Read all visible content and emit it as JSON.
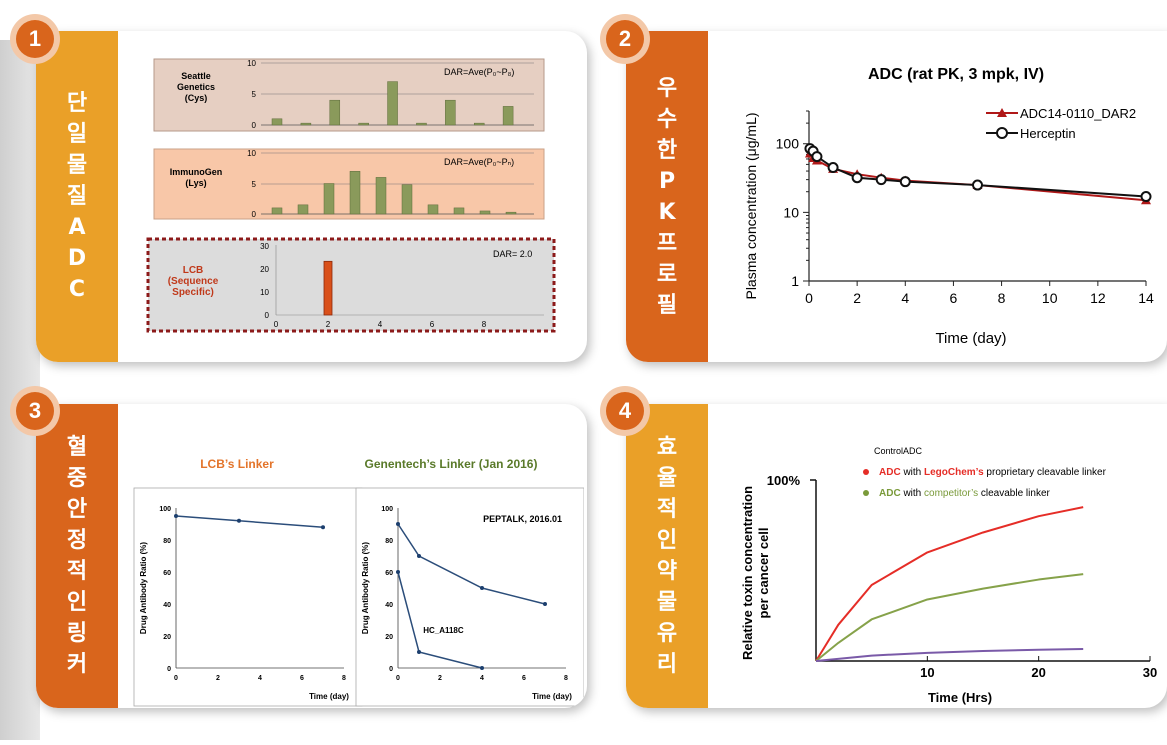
{
  "badges": [
    "1",
    "2",
    "3",
    "4"
  ],
  "panel1": {
    "side_label": "단일물질ADC",
    "charts": [
      {
        "label_lines": [
          "Seattle",
          "Genetics",
          "(Cys)"
        ],
        "dar": "DAR=Ave(P₀~P₈)",
        "ylim": [
          0,
          10
        ],
        "yticks": [
          "10",
          "5",
          "0"
        ],
        "values": [
          1,
          0.3,
          4,
          0.3,
          7,
          0.3,
          4,
          0.3,
          3
        ]
      },
      {
        "label_lines": [
          "ImmunoGen",
          "(Lys)"
        ],
        "dar": "DAR=Ave(P₀~Pₙ)",
        "ylim": [
          0,
          10
        ],
        "yticks": [
          "10",
          "5",
          "0"
        ],
        "values": [
          1,
          1.5,
          5,
          7,
          6,
          4.8,
          1.5,
          1,
          0.5,
          0.3
        ]
      },
      {
        "label_lines": [
          "LCB",
          "(Sequence",
          "Specific)"
        ],
        "dar": "DAR= 2.0",
        "ylim": [
          0,
          30
        ],
        "yticks": [
          "30",
          "20",
          "10",
          "0"
        ],
        "xticks": [
          "0",
          "2",
          "4",
          "6",
          "8"
        ],
        "values": [
          {
            "x": 2,
            "y": 23
          }
        ]
      }
    ]
  },
  "panel2": {
    "side_label": "우수한PK프로필",
    "chart_data": {
      "type": "line",
      "title": "ADC (rat PK, 3 mpk, IV)",
      "xlabel": "Time (day)",
      "ylabel": "Plasma concentration (μg/mL)",
      "yscale": "log",
      "ylim": [
        1,
        300
      ],
      "xlim": [
        0,
        14
      ],
      "xticks": [
        "0",
        "2",
        "4",
        "6",
        "8",
        "10",
        "12",
        "14"
      ],
      "yticks": [
        "1",
        "10",
        "100"
      ],
      "series": [
        {
          "name": "ADC14-0110_DAR2",
          "color": "#b01818",
          "marker": "triangle",
          "x": [
            0.04,
            0.17,
            0.33,
            1,
            2,
            3,
            4,
            7,
            14
          ],
          "y": [
            72,
            62,
            57,
            43,
            36,
            32,
            29,
            25,
            15
          ]
        },
        {
          "name": "Herceptin",
          "color": "#111111",
          "marker": "circle",
          "x": [
            0.04,
            0.17,
            0.33,
            1,
            2,
            3,
            4,
            7,
            14
          ],
          "y": [
            85,
            78,
            65,
            45,
            32,
            30,
            28,
            25,
            17
          ]
        }
      ]
    }
  },
  "panel3": {
    "side_label": "혈중안정적인링커",
    "left_title": "LCB’s Linker",
    "right_title": "Genentech’s Linker (Jan 2016)",
    "chart_data": [
      {
        "type": "line",
        "ylabel": "Drug Antibody Ratio (%)",
        "xlabel": "",
        "ylim": [
          0,
          100
        ],
        "xlim": [
          0,
          8
        ],
        "yticks": [
          "100",
          "80",
          "60",
          "40",
          "20",
          "0"
        ],
        "xticks": [
          "0",
          "2",
          "4",
          "6",
          "8"
        ],
        "series": [
          {
            "x": [
              0,
              3,
              7
            ],
            "y": [
              95,
              92,
              88
            ]
          }
        ]
      },
      {
        "type": "line",
        "ylabel": "Drug Antibody Ratio (%)",
        "xlabel": "Time (day)",
        "ylim": [
          0,
          100
        ],
        "xlim": [
          0,
          8
        ],
        "annotation": "PEPTALK, 2016.01",
        "series_label": "HC_A118C",
        "yticks": [
          "100",
          "80",
          "60",
          "40",
          "20",
          "0"
        ],
        "xticks": [
          "0",
          "2",
          "4",
          "6",
          "8"
        ],
        "series": [
          {
            "x": [
              0,
              1,
              4,
              7
            ],
            "y": [
              90,
              70,
              50,
              40
            ]
          },
          {
            "x": [
              0,
              1,
              4
            ],
            "y": [
              60,
              10,
              0
            ]
          }
        ]
      }
    ],
    "time_label": "Time (day)"
  },
  "panel4": {
    "side_label": "효율적인약물유리",
    "legend": [
      {
        "text": "ControlADC",
        "dot": ""
      },
      {
        "parts": [
          "ADC",
          " with ",
          "LegoChem’s",
          " proprietary cleavable linker"
        ],
        "color": "#e52d27"
      },
      {
        "parts": [
          "ADC",
          " with ",
          "competitor’s",
          " cleavable linker"
        ],
        "color": "#7a9a3a"
      }
    ],
    "chart_data": {
      "type": "line",
      "ylabel": "Relative toxin concentration per cancer cell",
      "ylabel_lines": [
        "Relative toxin concentration",
        "per cancer cell"
      ],
      "xlabel": "Time (Hrs)",
      "ytick": "100%",
      "xticks": [
        "10",
        "20",
        "30"
      ],
      "xlim": [
        0,
        30
      ],
      "series": [
        {
          "color": "#e52d27",
          "x": [
            0,
            2,
            5,
            10,
            15,
            20,
            24
          ],
          "y": [
            0,
            0.2,
            0.42,
            0.6,
            0.71,
            0.8,
            0.85
          ]
        },
        {
          "color": "#86a24a",
          "x": [
            0,
            2,
            5,
            10,
            15,
            20,
            24
          ],
          "y": [
            0,
            0.1,
            0.23,
            0.34,
            0.4,
            0.45,
            0.48
          ]
        },
        {
          "color": "#7a5aa8",
          "x": [
            0,
            5,
            10,
            15,
            20,
            24
          ],
          "y": [
            0,
            0.03,
            0.045,
            0.055,
            0.062,
            0.066
          ]
        }
      ]
    }
  }
}
